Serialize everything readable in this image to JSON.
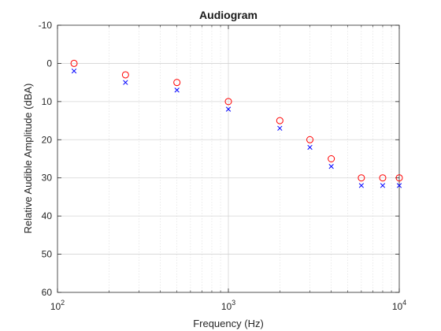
{
  "chart_data": {
    "type": "scatter",
    "title": "Audiogram",
    "xlabel": "Frequency (Hz)",
    "ylabel": "Relative Audible Amplitude (dBA)",
    "xscale": "log",
    "xlim": [
      100,
      10000
    ],
    "ylim": [
      60,
      -10
    ],
    "y_axis_reversed": true,
    "grid": true,
    "minor_grid_x": true,
    "x_ticks": [
      {
        "base": "10",
        "exp": "2"
      },
      {
        "base": "10",
        "exp": "3"
      },
      {
        "base": "10",
        "exp": "4"
      }
    ],
    "y_ticks": [
      "-10",
      "0",
      "10",
      "20",
      "30",
      "40",
      "50",
      "60"
    ],
    "series": [
      {
        "marker": "circle",
        "color": "#ff0000",
        "x": [
          125,
          250,
          500,
          1000,
          2000,
          3000,
          4000,
          6000,
          8000,
          10000
        ],
        "y": [
          0,
          3,
          5,
          10,
          15,
          20,
          25,
          30,
          30,
          30
        ]
      },
      {
        "marker": "x",
        "color": "#0000ff",
        "x": [
          125,
          250,
          500,
          1000,
          2000,
          3000,
          4000,
          6000,
          8000,
          10000
        ],
        "y": [
          2,
          5,
          7,
          12,
          17,
          22,
          27,
          32,
          32,
          32
        ]
      }
    ]
  }
}
